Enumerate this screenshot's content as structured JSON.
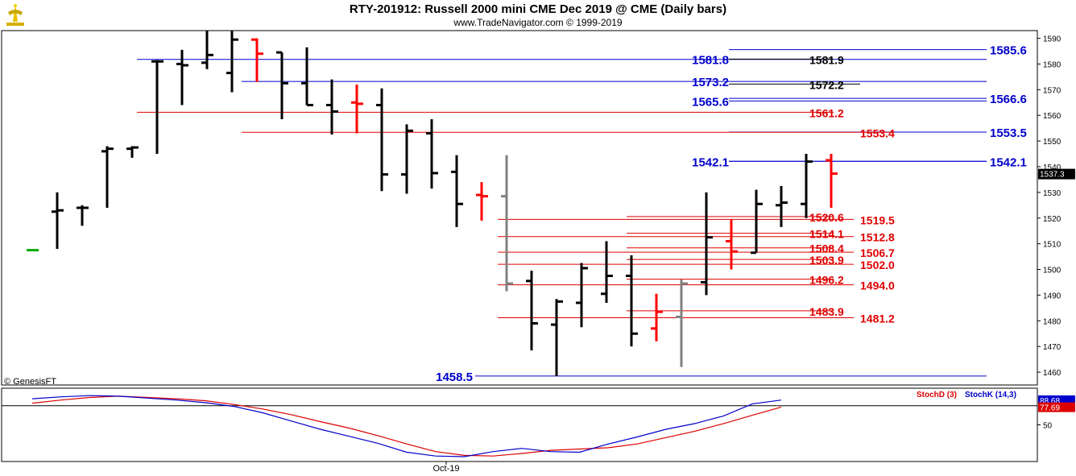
{
  "header": {
    "title": "RTY-201912:  Russell 2000 mini CME Dec 2019 @ CME  (Daily bars)",
    "subtitle": "www.TradeNavigator.com © 1999-2019"
  },
  "footer": {
    "copyright": "© GenesisFT"
  },
  "colors": {
    "bar_black": "#000000",
    "bar_red": "#ff0000",
    "bar_gray": "#808080",
    "level_blue": "#0000cc",
    "level_red": "#e00000",
    "stoch_d": "#dd0000",
    "stoch_k": "#0000cc",
    "last_price_bg": "#000000"
  },
  "chart_data": [
    {
      "type": "ohlc",
      "title": "RTY-201912:  Russell 2000 mini CME Dec 2019 @ CME  (Daily bars)",
      "ylim": [
        1455,
        1593
      ],
      "y_ticks": [
        1460,
        1470,
        1480,
        1490,
        1500,
        1510,
        1520,
        1530,
        1540,
        1550,
        1560,
        1570,
        1580,
        1590
      ],
      "x_labels": [
        "Oct-19"
      ],
      "last_price": "1537.3",
      "bars": [
        {
          "o": 1507.5,
          "h": 1507.5,
          "l": 1507.5,
          "c": 1507.5,
          "color": "green"
        },
        {
          "o": 1522.5,
          "h": 1530,
          "l": 1508,
          "c": 1523,
          "color": "black"
        },
        {
          "o": 1524,
          "h": 1525,
          "l": 1517,
          "c": 1524,
          "color": "black"
        },
        {
          "o": 1546,
          "h": 1548,
          "l": 1524,
          "c": 1547,
          "color": "black"
        },
        {
          "o": 1547,
          "h": 1548,
          "l": 1543.5,
          "c": 1547.5,
          "color": "black"
        },
        {
          "o": 1581,
          "h": 1581.5,
          "l": 1545,
          "c": 1581,
          "color": "black"
        },
        {
          "o": 1580,
          "h": 1585.5,
          "l": 1564,
          "c": 1579.5,
          "color": "black"
        },
        {
          "o": 1580.5,
          "h": 1593,
          "l": 1578,
          "c": 1583.5,
          "color": "black"
        },
        {
          "o": 1576.5,
          "h": 1593,
          "l": 1569,
          "c": 1589.5,
          "color": "black"
        },
        {
          "o": 1589.5,
          "h": 1590,
          "l": 1573,
          "c": 1584,
          "color": "red"
        },
        {
          "o": 1584.5,
          "h": 1584.5,
          "l": 1558.5,
          "c": 1572.5,
          "color": "black"
        },
        {
          "o": 1572.5,
          "h": 1586.5,
          "l": 1564,
          "c": 1564,
          "color": "black"
        },
        {
          "o": 1564,
          "h": 1574,
          "l": 1552.5,
          "c": 1561.5,
          "color": "black"
        },
        {
          "o": 1565,
          "h": 1572,
          "l": 1553,
          "c": 1564.5,
          "color": "red"
        },
        {
          "o": 1564,
          "h": 1570.5,
          "l": 1530.5,
          "c": 1537,
          "color": "black"
        },
        {
          "o": 1537,
          "h": 1556.5,
          "l": 1529.5,
          "c": 1554,
          "color": "black"
        },
        {
          "o": 1553,
          "h": 1558.5,
          "l": 1531.5,
          "c": 1537.5,
          "color": "black"
        },
        {
          "o": 1538,
          "h": 1544.5,
          "l": 1516.5,
          "c": 1525.5,
          "color": "black"
        },
        {
          "o": 1529,
          "h": 1534,
          "l": 1519,
          "c": 1528.5,
          "color": "red"
        },
        {
          "o": 1528.5,
          "h": 1544.5,
          "l": 1491.5,
          "c": 1494.5,
          "color": "gray"
        },
        {
          "o": 1495.5,
          "h": 1499.5,
          "l": 1468.5,
          "c": 1479,
          "color": "black"
        },
        {
          "o": 1478.5,
          "h": 1488.5,
          "l": 1458.5,
          "c": 1487.5,
          "color": "black"
        },
        {
          "o": 1487,
          "h": 1502.5,
          "l": 1477.5,
          "c": 1500.5,
          "color": "black"
        },
        {
          "o": 1490.5,
          "h": 1511,
          "l": 1487,
          "c": 1497.5,
          "color": "black"
        },
        {
          "o": 1497.5,
          "h": 1505.5,
          "l": 1470,
          "c": 1475,
          "color": "black"
        },
        {
          "o": 1477,
          "h": 1490.5,
          "l": 1472,
          "c": 1483.5,
          "color": "red"
        },
        {
          "o": 1481.5,
          "h": 1496,
          "l": 1462,
          "c": 1494.5,
          "color": "gray"
        },
        {
          "o": 1495,
          "h": 1530,
          "l": 1490,
          "c": 1512.5,
          "color": "black"
        },
        {
          "o": 1511,
          "h": 1519.5,
          "l": 1500,
          "c": 1507,
          "color": "red"
        },
        {
          "o": 1506.5,
          "h": 1531,
          "l": 1506.5,
          "c": 1525.5,
          "color": "black"
        },
        {
          "o": 1525,
          "h": 1532.5,
          "l": 1516.5,
          "c": 1526,
          "color": "black"
        },
        {
          "o": 1525.5,
          "h": 1545,
          "l": 1520,
          "c": 1542,
          "color": "black"
        },
        {
          "o": 1542.5,
          "h": 1545,
          "l": 1524,
          "c": 1537.3,
          "color": "red"
        }
      ],
      "levels": [
        {
          "price": 1585.6,
          "label": "1585.6",
          "color": "blue",
          "bold": true,
          "side": "right"
        },
        {
          "price": 1581.8,
          "label": "1581.8",
          "color": "blue",
          "bold": true,
          "side": "left"
        },
        {
          "price": 1581.9,
          "label": "1581.9",
          "color": "black",
          "bold": false,
          "side": "mid"
        },
        {
          "price": 1573.2,
          "label": "1573.2",
          "color": "blue",
          "bold": true,
          "side": "left"
        },
        {
          "price": 1572.2,
          "label": "1572.2",
          "color": "black",
          "bold": false,
          "side": "mid"
        },
        {
          "price": 1566.6,
          "label": "1566.6",
          "color": "blue",
          "bold": true,
          "side": "right"
        },
        {
          "price": 1565.6,
          "label": "1565.6",
          "color": "blue",
          "bold": true,
          "side": "left"
        },
        {
          "price": 1561.2,
          "label": "1561.2",
          "color": "red",
          "bold": false,
          "side": "mid"
        },
        {
          "price": 1553.5,
          "label": "1553.5",
          "color": "blue",
          "bold": true,
          "side": "right"
        },
        {
          "price": 1553.4,
          "label": "1553.4",
          "color": "red",
          "bold": false,
          "side": "mid2"
        },
        {
          "price": 1542.1,
          "label": "1542.1",
          "color": "blue",
          "bold": true,
          "side": "left"
        },
        {
          "price": 1542.1,
          "label": "1542.1",
          "color": "blue",
          "bold": true,
          "side": "right"
        },
        {
          "price": 1520.6,
          "label": "1520.6",
          "color": "red",
          "bold": false,
          "side": "mid"
        },
        {
          "price": 1519.5,
          "label": "1519.5",
          "color": "red",
          "bold": false,
          "side": "mid2"
        },
        {
          "price": 1514.1,
          "label": "1514.1",
          "color": "red",
          "bold": false,
          "side": "mid"
        },
        {
          "price": 1512.8,
          "label": "1512.8",
          "color": "red",
          "bold": false,
          "side": "mid2"
        },
        {
          "price": 1508.4,
          "label": "1508.4",
          "color": "red",
          "bold": false,
          "side": "mid"
        },
        {
          "price": 1506.7,
          "label": "1506.7",
          "color": "red",
          "bold": false,
          "side": "mid2"
        },
        {
          "price": 1503.9,
          "label": "1503.9",
          "color": "red",
          "bold": false,
          "side": "mid"
        },
        {
          "price": 1502.0,
          "label": "1502.0",
          "color": "red",
          "bold": false,
          "side": "mid2"
        },
        {
          "price": 1496.2,
          "label": "1496.2",
          "color": "red",
          "bold": false,
          "side": "mid"
        },
        {
          "price": 1494.0,
          "label": "1494.0",
          "color": "red",
          "bold": false,
          "side": "mid2"
        },
        {
          "price": 1483.9,
          "label": "1483.9",
          "color": "red",
          "bold": false,
          "side": "mid"
        },
        {
          "price": 1481.2,
          "label": "1481.2",
          "color": "red",
          "bold": false,
          "side": "mid2"
        },
        {
          "price": 1458.5,
          "label": "1458.5",
          "color": "blue",
          "bold": true,
          "side": "low"
        }
      ]
    },
    {
      "type": "line",
      "title": "",
      "ylim": [
        0,
        100
      ],
      "y_ticks": [
        50
      ],
      "reference_line": 80,
      "last_values": [
        "88.68",
        "77.69"
      ],
      "series": [
        {
          "name": "StochD (3)",
          "values": [
            84,
            89,
            93,
            95,
            93,
            91,
            88,
            82,
            75,
            66,
            55,
            45,
            33,
            20,
            8,
            2,
            1,
            5,
            10,
            12,
            14,
            20,
            30,
            40,
            52,
            65,
            78
          ]
        },
        {
          "name": "StochK (14,3)",
          "values": [
            91,
            94,
            96,
            95,
            92,
            89,
            85,
            79,
            69,
            56,
            43,
            32,
            21,
            7,
            1,
            0,
            8,
            13,
            8,
            7,
            20,
            31,
            43,
            52,
            64,
            83,
            89
          ]
        }
      ]
    }
  ]
}
